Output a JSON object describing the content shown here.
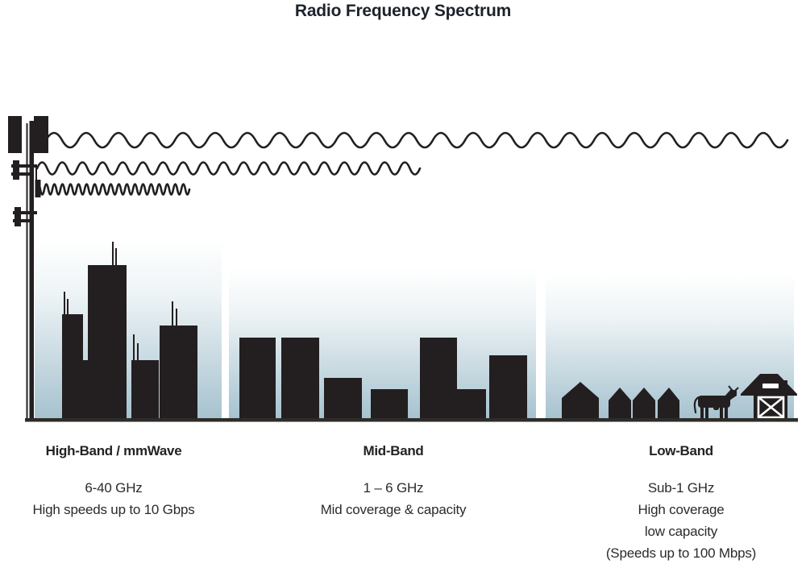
{
  "title": "Radio Frequency Spectrum",
  "colors": {
    "ink": "#231f20",
    "title": "#1d222b",
    "text": "#2b2b2b",
    "sky_top": "#ffffff",
    "sky_mid": "#eef4f6",
    "sky_bottom": "#a6c2cf",
    "ground": "#2e2c29"
  },
  "tower": {
    "name": "cell-tower-antenna"
  },
  "waves": [
    {
      "name": "long-wavelength-wave"
    },
    {
      "name": "medium-wavelength-wave"
    },
    {
      "name": "short-wavelength-wave"
    }
  ],
  "sections": [
    {
      "heading": "High-Band / mmWave",
      "lines": [
        "6-40 GHz",
        "High speeds up to 10 Gbps"
      ],
      "scene": "city-skyline"
    },
    {
      "heading": "Mid-Band",
      "lines": [
        "1 – 6 GHz",
        "Mid coverage & capacity"
      ],
      "scene": "town-buildings"
    },
    {
      "heading": "Low-Band",
      "lines": [
        "Sub-1 GHz",
        "High coverage",
        "low capacity",
        "(Speeds up to 100 Mbps)"
      ],
      "scene": "farm-with-houses-cow-and-barn"
    }
  ]
}
